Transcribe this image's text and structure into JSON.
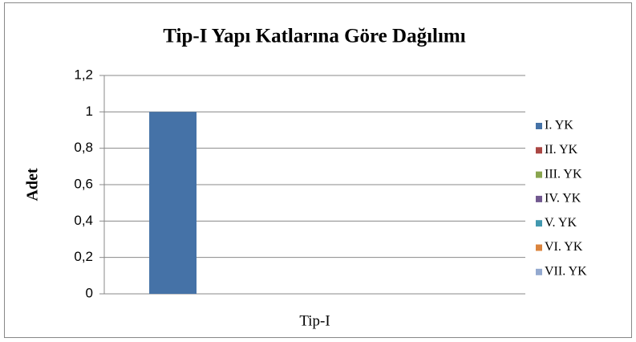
{
  "chart_data": {
    "type": "bar",
    "title": "Tip-I Yapı Katlarına Göre Dağılımı",
    "y_label": "Adet",
    "categories": [
      "Tip-I"
    ],
    "series": [
      {
        "name": "I. YK",
        "color": "#4572a7",
        "values": [
          1
        ]
      },
      {
        "name": "II. YK",
        "color": "#aa4643",
        "values": [
          0
        ]
      },
      {
        "name": "III. YK",
        "color": "#89a54e",
        "values": [
          0
        ]
      },
      {
        "name": "IV. YK",
        "color": "#71588f",
        "values": [
          0
        ]
      },
      {
        "name": "V. YK",
        "color": "#4198af",
        "values": [
          0
        ]
      },
      {
        "name": "VI. YK",
        "color": "#db843d",
        "values": [
          0
        ]
      },
      {
        "name": "VII. YK",
        "color": "#93a9cf",
        "values": [
          0
        ]
      }
    ],
    "ylim": [
      0,
      1.2
    ],
    "yticks": [
      0,
      {
        "value": 0.2,
        "label": "0,2"
      },
      {
        "value": 0.4,
        "label": "0,4"
      },
      {
        "value": 0.6,
        "label": "0,6"
      },
      {
        "value": 0.8,
        "label": "0,8"
      },
      1,
      {
        "value": 1.2,
        "label": "1,2"
      }
    ],
    "grid": true,
    "legend": "right"
  }
}
